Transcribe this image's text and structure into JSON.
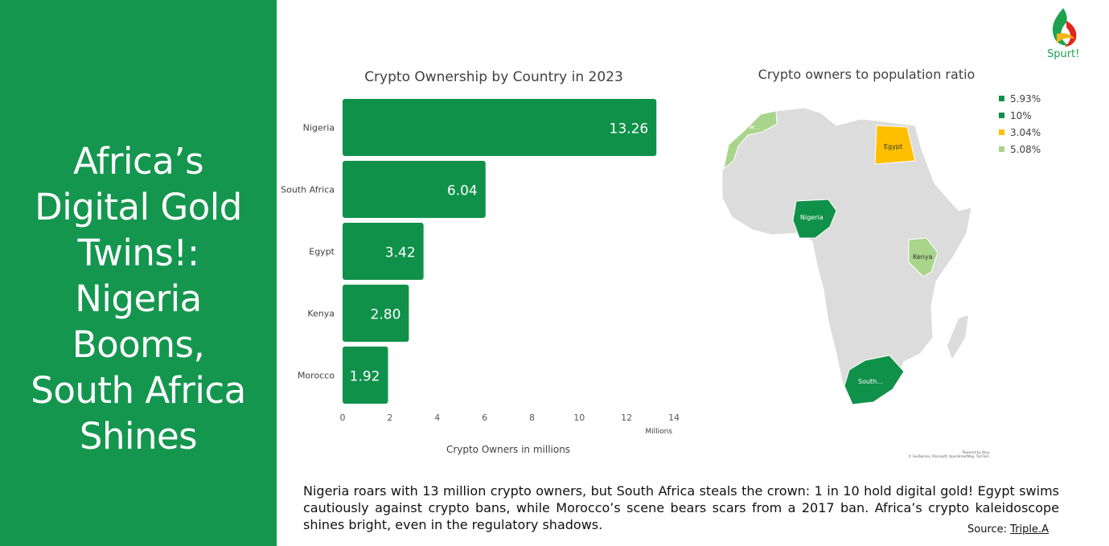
{
  "headline": [
    "Africa’s",
    "Digital Gold",
    "Twins!:",
    "Nigeria",
    "Booms,",
    "South Africa",
    "Shines"
  ],
  "logo": {
    "text": "Spurt!"
  },
  "colors": {
    "panel": "#15964f",
    "bar": "#10914a",
    "egypt": "#fdbf00",
    "light_green": "#a9d48b",
    "land": "#dcdcdc"
  },
  "chart_data": {
    "type": "bar",
    "orientation": "horizontal",
    "title": "Crypto Ownership by Country in 2023",
    "categories": [
      "Nigeria",
      "South Africa",
      "Egypt",
      "Kenya",
      "Morocco"
    ],
    "values": [
      13.26,
      6.04,
      3.42,
      2.8,
      1.92
    ],
    "value_labels": [
      "13.26",
      "6.04",
      "3.42",
      "2.80",
      "1.92"
    ],
    "xlabel": "Crypto Owners in millions",
    "x_unit_label": "Millions",
    "xlim": [
      0,
      14
    ],
    "xticks": [
      "0",
      "2",
      "4",
      "6",
      "8",
      "10",
      "12",
      "14"
    ],
    "grid": false
  },
  "map": {
    "title": "Crypto owners to population ratio",
    "legend": [
      {
        "label": "5.93%",
        "color": "#10914a"
      },
      {
        "label": "10%",
        "color": "#10914a"
      },
      {
        "label": "3.04%",
        "color": "#fdbf00"
      },
      {
        "label": "5.08%",
        "color": "#a9d48b"
      }
    ],
    "labels": {
      "morocco": "M...",
      "egypt": "Egypt",
      "nigeria": "Nigeria",
      "kenya": "Kenya",
      "south_africa": "South..."
    },
    "credit": [
      "Powered by Bing",
      "© GeoNames, Microsoft, OpenStreetMap, TomTom"
    ]
  },
  "caption": "Nigeria roars with 13 million crypto owners, but South Africa steals the crown: 1 in 10 hold digital gold! Egypt swims cautiously against crypto bans, while Morocco’s scene bears scars from a 2017 ban. Africa’s crypto kaleidoscope shines bright, even in the regulatory shadows.",
  "source": {
    "label": "Source:",
    "link": "Triple.A"
  }
}
